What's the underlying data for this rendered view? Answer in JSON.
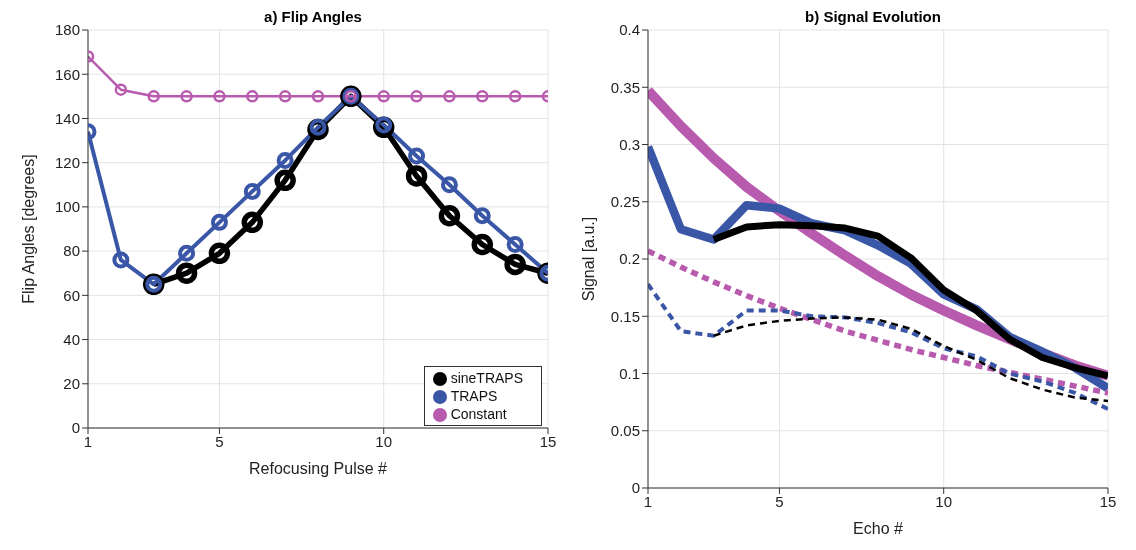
{
  "chart_data": [
    {
      "type": "line",
      "title": "a) Flip Angles",
      "xlabel": "Refocusing Pulse #",
      "ylabel": "Flip Angles [degrees]",
      "x": [
        1,
        2,
        3,
        4,
        5,
        6,
        7,
        8,
        9,
        10,
        11,
        12,
        13,
        14,
        15
      ],
      "series": [
        {
          "name": "sineTRAPS",
          "color": "#000000",
          "values": [
            null,
            null,
            65,
            70,
            79,
            93,
            112,
            135,
            150,
            136,
            114,
            96,
            83,
            74,
            70
          ]
        },
        {
          "name": "TRAPS",
          "color": "#3a57a7",
          "values": [
            134,
            76,
            65,
            79,
            93,
            107,
            121,
            136,
            150,
            137,
            123,
            110,
            96,
            83,
            70
          ]
        },
        {
          "name": "Constant",
          "color": "#b85aae",
          "values": [
            168,
            153,
            150,
            150,
            150,
            150,
            150,
            150,
            150,
            150,
            150,
            150,
            150,
            150,
            150
          ]
        }
      ],
      "xlim": [
        1,
        15
      ],
      "xticks": [
        1,
        5,
        10,
        15
      ],
      "ylim": [
        0,
        180
      ],
      "yticks": [
        0,
        20,
        40,
        60,
        80,
        100,
        120,
        140,
        160,
        180
      ],
      "grid": true,
      "legend": "bottom right",
      "marker": "circle",
      "line_style": "solid"
    },
    {
      "type": "line",
      "title": "b) Signal Evolution",
      "xlabel": "Echo #",
      "ylabel": "Signal [a.u.]",
      "x": [
        1,
        2,
        3,
        4,
        5,
        6,
        7,
        8,
        9,
        10,
        11,
        12,
        13,
        14,
        15
      ],
      "series": [
        {
          "color": "#b85aae",
          "line_style": "solid",
          "values": [
            0.347,
            0.316,
            0.288,
            0.263,
            0.242,
            0.222,
            0.203,
            0.185,
            0.169,
            0.155,
            0.142,
            0.13,
            0.118,
            0.107,
            0.098
          ]
        },
        {
          "color": "#3a57a7",
          "line_style": "solid",
          "values": [
            0.298,
            0.226,
            0.217,
            0.247,
            0.244,
            0.231,
            0.225,
            0.212,
            0.196,
            0.169,
            0.156,
            0.132,
            0.119,
            0.105,
            0.087
          ]
        },
        {
          "color": "#000000",
          "line_style": "solid",
          "values": [
            null,
            null,
            0.217,
            0.228,
            0.23,
            0.229,
            0.227,
            0.22,
            0.201,
            0.173,
            0.155,
            0.13,
            0.114,
            0.105,
            0.098
          ]
        },
        {
          "color": "#b85aae",
          "line_style": "dashed",
          "values": [
            0.207,
            0.193,
            0.18,
            0.168,
            0.157,
            0.147,
            0.137,
            0.129,
            0.121,
            0.114,
            0.107,
            0.101,
            0.095,
            0.089,
            0.083
          ]
        },
        {
          "color": "#3a57a7",
          "line_style": "dashed",
          "values": [
            0.178,
            0.137,
            0.133,
            0.155,
            0.155,
            0.15,
            0.149,
            0.144,
            0.136,
            0.122,
            0.115,
            0.1,
            0.093,
            0.083,
            0.069
          ]
        },
        {
          "color": "#000000",
          "line_style": "dashed",
          "values": [
            null,
            null,
            0.133,
            0.142,
            0.146,
            0.148,
            0.149,
            0.147,
            0.139,
            0.124,
            0.112,
            0.096,
            0.086,
            0.079,
            0.076
          ]
        }
      ],
      "xlim": [
        1,
        15
      ],
      "xticks": [
        1,
        5,
        10,
        15
      ],
      "ylim": [
        0,
        0.4
      ],
      "yticks": [
        0,
        0.05,
        0.1,
        0.15,
        0.2,
        0.25,
        0.3,
        0.35,
        0.4
      ],
      "grid": true,
      "marker": "none"
    }
  ]
}
